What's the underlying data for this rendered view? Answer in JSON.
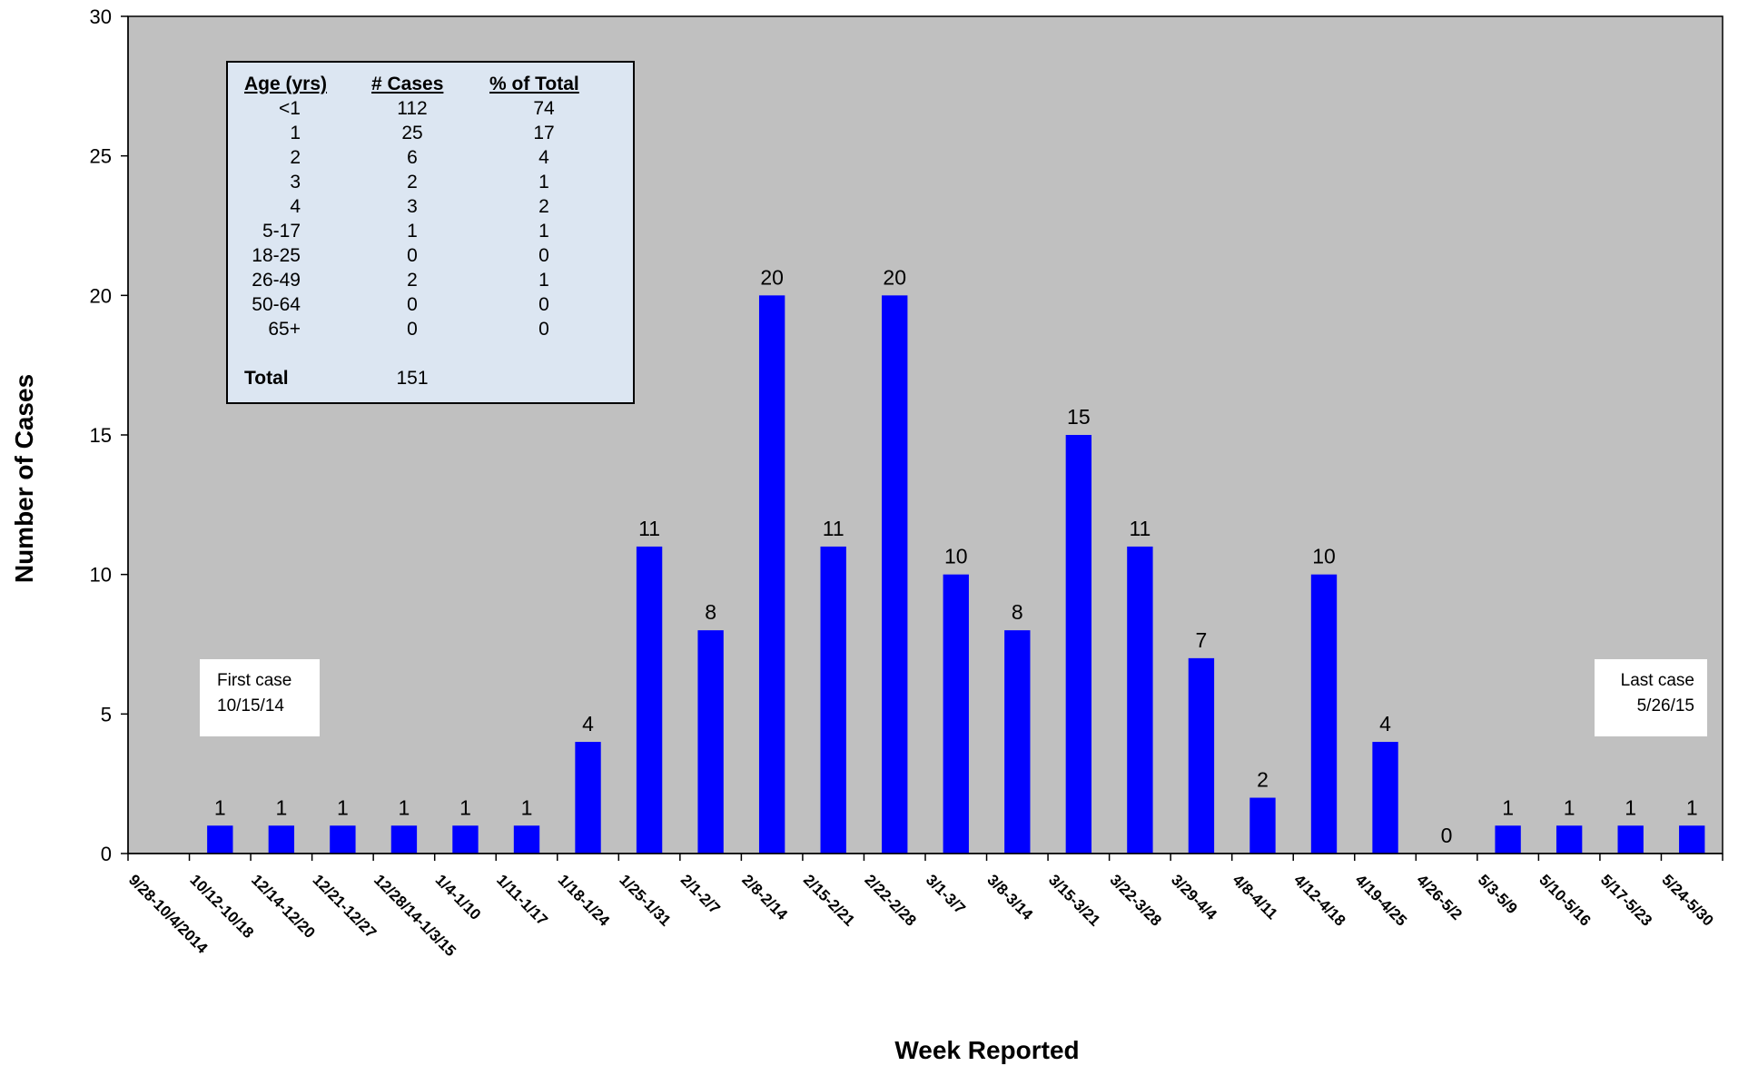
{
  "chart_data": {
    "type": "bar",
    "xlabel": "Week Reported",
    "ylabel": "Number of Cases",
    "ylim": [
      0,
      30
    ],
    "yticks": [
      0,
      5,
      10,
      15,
      20,
      25,
      30
    ],
    "grid": false,
    "categories": [
      "9/28-10/4/2014",
      "10/12-10/18",
      "12/14-12/20",
      "12/21-12/27",
      "12/28/14-1/3/15",
      "1/4-1/10",
      "1/11-1/17",
      "1/18-1/24",
      "1/25-1/31",
      "2/1-2/7",
      "2/8-2/14",
      "2/15-2/21",
      "2/22-2/28",
      "3/1-3/7",
      "3/8-3/14",
      "3/15-3/21",
      "3/22-3/28",
      "3/29-4/4",
      "4/8-4/11",
      "4/12-4/18",
      "4/19-4/25",
      "4/26-5/2",
      "5/3-5/9",
      "5/10-5/16",
      "5/17-5/23",
      "5/24-5/30"
    ],
    "values": [
      null,
      1,
      1,
      1,
      1,
      1,
      1,
      4,
      11,
      8,
      20,
      11,
      20,
      10,
      8,
      15,
      11,
      7,
      2,
      10,
      4,
      0,
      1,
      1,
      1,
      1
    ],
    "colors": {
      "bar": "#0000ff",
      "plot_bg": "#c0c0c0"
    }
  },
  "age_table": {
    "headers": [
      "Age (yrs)",
      "# Cases",
      "% of Total"
    ],
    "rows": [
      [
        "<1",
        "112",
        "74"
      ],
      [
        "1",
        "25",
        "17"
      ],
      [
        "2",
        "6",
        "4"
      ],
      [
        "3",
        "2",
        "1"
      ],
      [
        "4",
        "3",
        "2"
      ],
      [
        "5-17",
        "1",
        "1"
      ],
      [
        "18-25",
        "0",
        "0"
      ],
      [
        "26-49",
        "2",
        "1"
      ],
      [
        "50-64",
        "0",
        "0"
      ],
      [
        "65+",
        "0",
        "0"
      ]
    ],
    "total_label": "Total",
    "total_value": "151"
  },
  "annotations": {
    "first_case": {
      "line1": "First case",
      "line2": "10/15/14"
    },
    "last_case": {
      "line1": "Last case",
      "line2": "5/26/15"
    }
  }
}
